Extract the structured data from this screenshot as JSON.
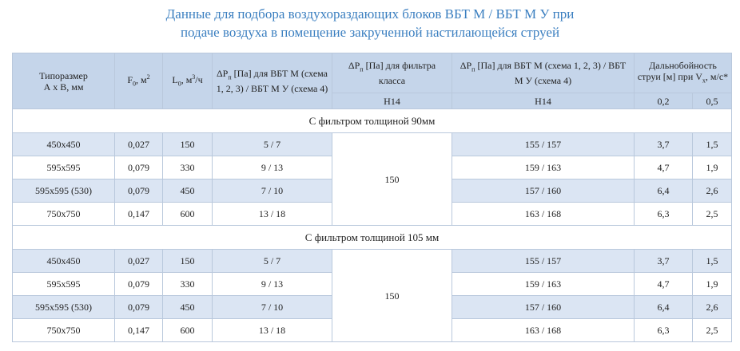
{
  "title": [
    "Данные для подбора воздухораздающих  блоков ВБТ М / ВБТ М У при",
    "подаче воздуха в помещение закрученной настилающейся струей"
  ],
  "table": {
    "header": [
      [
        {
          "text": "Типоразмер"
        },
        {
          "br": "А х В, мм"
        }
      ],
      [
        {
          "text": "F"
        },
        {
          "sub": "0"
        },
        {
          "text": ", м"
        },
        {
          "sup": "2"
        }
      ],
      [
        {
          "text": "L"
        },
        {
          "sub": "0"
        },
        {
          "text": ", м"
        },
        {
          "sup": "3"
        },
        {
          "text": "/ч"
        }
      ],
      [
        {
          "text": "ΔP"
        },
        {
          "sub": "п"
        },
        {
          "text": " [Па]  для ВБТ М (схема 1, 2, 3) / ВБТ М У (схема 4)"
        }
      ],
      [
        {
          "text": "ΔP"
        },
        {
          "sub": "п"
        },
        {
          "text": " [Па] для фильтра класса"
        }
      ],
      [
        {
          "text": "ΔP"
        },
        {
          "sub": "п"
        },
        {
          "text": " [Па] для ВБТ М (схема 1, 2, 3) / ВБТ М У (схема 4)"
        }
      ],
      [
        {
          "text": "Дальнобойность струи [м] при V"
        },
        {
          "sub": "x"
        },
        {
          "text": ", м/с*"
        }
      ]
    ],
    "subheader": [
      "H14",
      "H14",
      "0,2",
      "0,5"
    ],
    "sections": [
      {
        "label": "С фильтром толщиной 90мм",
        "filter_dp": "150",
        "rows": [
          [
            "450x450",
            "0,027",
            "150",
            "5 / 7",
            "155 / 157",
            "3,7",
            "1,5"
          ],
          [
            "595x595",
            "0,079",
            "330",
            "9 / 13",
            "159 / 163",
            "4,7",
            "1,9"
          ],
          [
            "595x595 (530)",
            "0,079",
            "450",
            "7 / 10",
            "157 / 160",
            "6,4",
            "2,6"
          ],
          [
            "750x750",
            "0,147",
            "600",
            "13 / 18",
            "163 / 168",
            "6,3",
            "2,5"
          ]
        ]
      },
      {
        "label": "С фильтром  толщиной 105 мм",
        "filter_dp": "150",
        "rows": [
          [
            "450x450",
            "0,027",
            "150",
            "5 / 7",
            "155 / 157",
            "3,7",
            "1,5"
          ],
          [
            "595x595",
            "0,079",
            "330",
            "9 / 13",
            "159 / 163",
            "4,7",
            "1,9"
          ],
          [
            "595x595 (530)",
            "0,079",
            "450",
            "7 / 10",
            "157 / 160",
            "6,4",
            "2,6"
          ],
          [
            "750x750",
            "0,147",
            "600",
            "13 / 18",
            "163 / 168",
            "6,3",
            "2,5"
          ]
        ]
      }
    ]
  }
}
